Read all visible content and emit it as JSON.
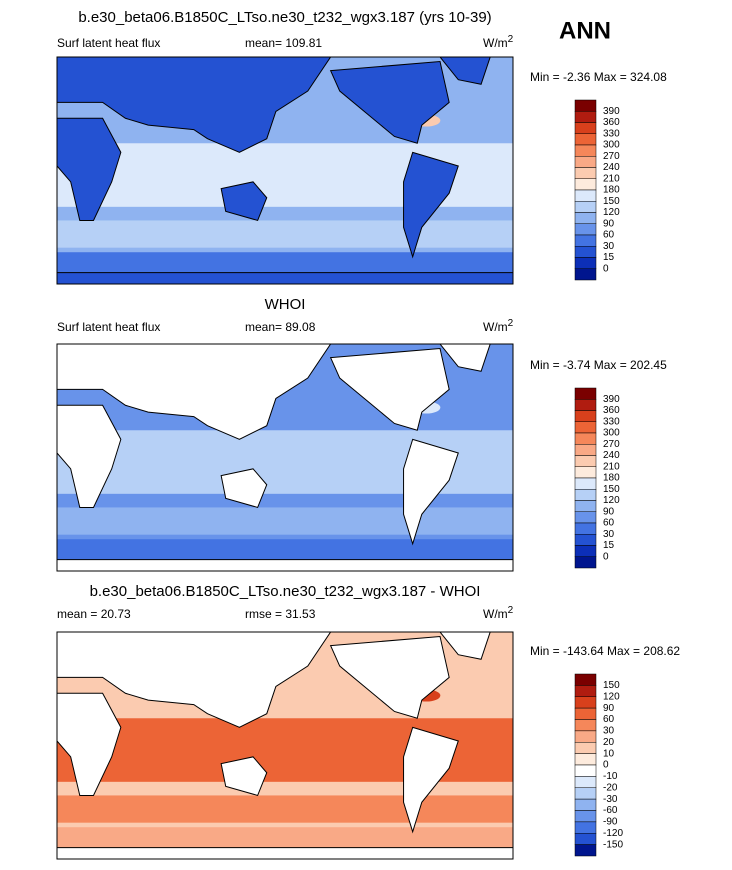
{
  "season": "ANN",
  "panels": [
    {
      "title": "b.e30_beta06.B1850C_LTso.ne30_t232_wgx3.187 (yrs 10-39)",
      "left": "Surf latent heat flux",
      "mid": "mean= 109.81",
      "units": {
        "base": "W/m",
        "sup": "2"
      },
      "minmax": "Min =  -2.36 Max = 324.08",
      "colorbar": [
        390,
        360,
        330,
        300,
        270,
        240,
        210,
        180,
        150,
        120,
        90,
        60,
        30,
        15,
        0
      ]
    },
    {
      "title": "WHOI",
      "left": "Surf latent heat flux",
      "mid": "mean=  89.08",
      "units": {
        "base": "W/m",
        "sup": "2"
      },
      "minmax": "Min =  -3.74 Max = 202.45",
      "colorbar": [
        390,
        360,
        330,
        300,
        270,
        240,
        210,
        180,
        150,
        120,
        90,
        60,
        30,
        15,
        0
      ]
    },
    {
      "title": "b.e30_beta06.B1850C_LTso.ne30_t232_wgx3.187 - WHOI",
      "left": "mean =  20.73",
      "mid": "rmse =  31.53",
      "units": {
        "base": "W/m",
        "sup": "2"
      },
      "minmax": "Min = -143.64 Max = 208.62",
      "colorbar": [
        150,
        120,
        90,
        60,
        30,
        20,
        10,
        0,
        -10,
        -20,
        -30,
        -60,
        -90,
        -120,
        -150
      ]
    }
  ]
}
